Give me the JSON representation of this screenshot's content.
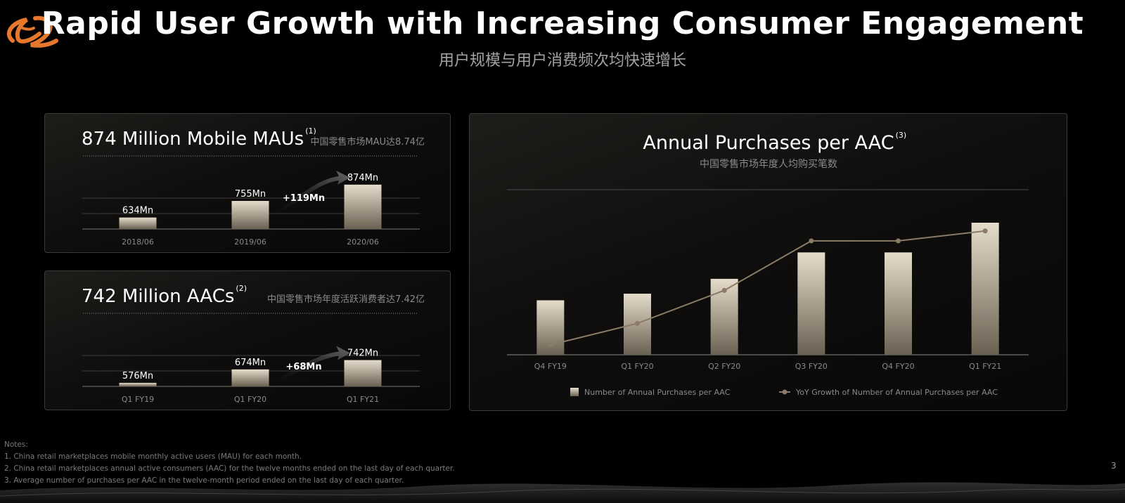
{
  "header": {
    "title": "Rapid User Growth with Increasing Consumer Engagement",
    "subtitle": "用户规模与用户消费频次均快速增长"
  },
  "colors": {
    "accent": "#e8772e",
    "bar_top": "#e5dccb",
    "bar_bottom": "#6b6152",
    "line": "#8a7a66",
    "grid": "#4a4a4a"
  },
  "icons": {
    "logo": "alibaba-logo"
  },
  "chart_data": [
    {
      "type": "bar",
      "title": "874 Million Mobile MAUs",
      "superscript": "(1)",
      "subtitle": "中国零售市场MAU达8.74亿",
      "categories": [
        "2018/06",
        "2019/06",
        "2020/06"
      ],
      "values": [
        634,
        755,
        874
      ],
      "data_labels": [
        "634Mn",
        "755Mn",
        "874Mn"
      ],
      "growth_label": "+119Mn",
      "grid": true
    },
    {
      "type": "bar",
      "title": "742 Million AACs",
      "superscript": "(2)",
      "subtitle": "中国零售市场年度活跃消费者达7.42亿",
      "categories": [
        "Q1 FY19",
        "Q1 FY20",
        "Q1 FY21"
      ],
      "values": [
        576,
        674,
        742
      ],
      "data_labels": [
        "576Mn",
        "674Mn",
        "742Mn"
      ],
      "growth_label": "+68Mn",
      "grid": true
    },
    {
      "type": "bar",
      "title": "Annual Purchases per AAC",
      "superscript": "(3)",
      "subtitle": "中国零售市场年度人均购买笔数",
      "categories": [
        "Q4 FY19",
        "Q1 FY20",
        "Q2 FY20",
        "Q3 FY20",
        "Q4 FY20",
        "Q1 FY21"
      ],
      "series": [
        {
          "name": "Number of Annual Purchases per AAC",
          "type": "bar",
          "values": [
            33,
            37,
            46,
            62,
            62,
            80
          ]
        },
        {
          "name": "YoY Growth of Number of Annual Purchases per AAC",
          "type": "line",
          "values": [
            6,
            19,
            39,
            69,
            69,
            75
          ]
        }
      ],
      "ylim": [
        0,
        100
      ],
      "legend_position": "bottom"
    }
  ],
  "notes": {
    "heading": "Notes:",
    "items": [
      "1. China retail marketplaces mobile monthly active users (MAU) for each month.",
      "2. China retail marketplaces annual active consumers (AAC) for the twelve months ended on the last day of each quarter.",
      "3. Average number of purchases per AAC in the twelve-month period ended on the last day of each quarter."
    ]
  },
  "page_number": "3"
}
